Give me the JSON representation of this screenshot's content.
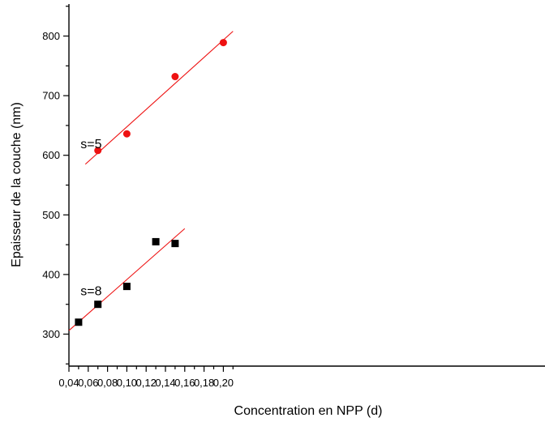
{
  "chart_data": {
    "type": "scatter",
    "xlabel": "Concentration en NPP (d)",
    "ylabel": "Epaisseur de la couche (nm)",
    "xlim": [
      0.04,
      0.21
    ],
    "ylim": [
      245,
      855
    ],
    "x_ticks": [
      "0,04",
      "0,06",
      "0,08",
      "0,10",
      "0,12",
      "0,14",
      "0,16",
      "0,18",
      "0,20"
    ],
    "x_tick_values": [
      0.04,
      0.06,
      0.08,
      0.1,
      0.12,
      0.14,
      0.16,
      0.18,
      0.2
    ],
    "y_ticks": [
      "300",
      "400",
      "500",
      "600",
      "700",
      "800"
    ],
    "y_tick_values": [
      300,
      400,
      500,
      600,
      700,
      800
    ],
    "grid": false,
    "series": [
      {
        "name": "s=5",
        "marker": "circle",
        "color": "#ee1111",
        "x": [
          0.07,
          0.1,
          0.15,
          0.2
        ],
        "y": [
          608,
          636,
          732,
          789
        ],
        "fit": {
          "x": [
            0.057,
            0.21
          ],
          "y": [
            585,
            808
          ],
          "color": "#ee1111"
        }
      },
      {
        "name": "s=8",
        "marker": "square",
        "color": "#000000",
        "x": [
          0.05,
          0.07,
          0.1,
          0.13,
          0.15
        ],
        "y": [
          320,
          350,
          380,
          455,
          452
        ],
        "fit": {
          "x": [
            0.04,
            0.16
          ],
          "y": [
            306,
            477
          ],
          "color": "#ee1111"
        }
      }
    ],
    "annotations": [
      {
        "text": "s=5",
        "x": 0.052,
        "y": 612
      },
      {
        "text": "s=8",
        "x": 0.052,
        "y": 365
      }
    ]
  }
}
